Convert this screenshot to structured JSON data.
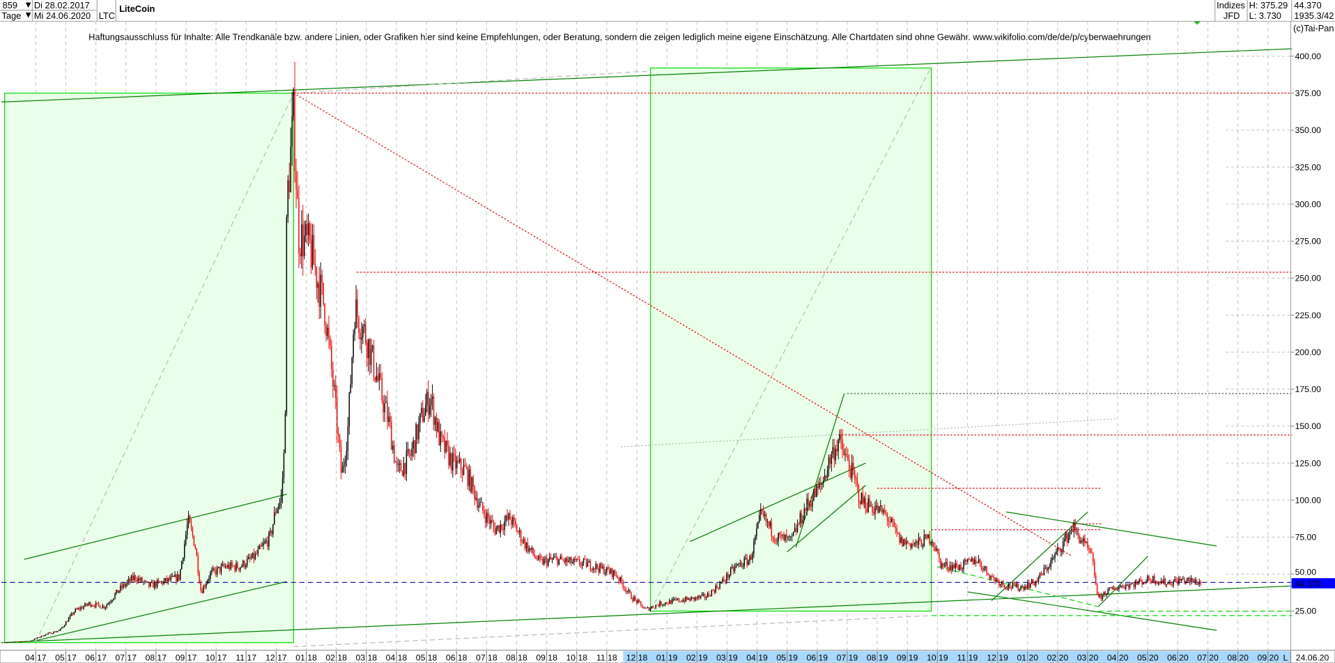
{
  "header": {
    "count_select": "859",
    "interval_select": "Tage",
    "date_from": "Di 28.02.2017",
    "date_to": "Mi 24.06.2020",
    "symbol": "LTC",
    "title": "LiteCoin",
    "exchange_top": "Indizes",
    "exchange_bottom": "JFD",
    "high": "H: 375.29",
    "low": "L: 3.730",
    "last": "44.370",
    "extra": "1935.3/42",
    "copyright": "(c)Tai-Pan"
  },
  "disclaimer": "Haftungsausschluss für Inhalte: Alle Trendkanäle bzw. andere Linien, oder Grafiken hier sind keine Empfehlungen, oder Beratung, sondern die zeigen lediglich meine eigene Einschätzung. Alle Chartdaten sind ohne Gewähr.  www.wikifolio.com/de/de/p/cyberwaehrungen",
  "colors": {
    "up": "#000000",
    "down": "#ff0000",
    "box": "#00dd00",
    "box_fill": "#eaffea",
    "trend": "#008000",
    "last_price_bg": "#0000ff",
    "axis_highlight": "#a8d8ff"
  },
  "chart_data": {
    "type": "candlestick",
    "ylim": [
      0,
      410
    ],
    "y_ticks": [
      "25.00",
      "50.00",
      "75.00",
      "100.00",
      "125.00",
      "150.00",
      "175.00",
      "200.00",
      "225.00",
      "250.00",
      "275.00",
      "300.00",
      "325.00",
      "350.00",
      "375.00",
      "400.00"
    ],
    "x_ticks": [
      "04 17",
      "05 17",
      "06 17",
      "07 17",
      "08 17",
      "09 17",
      "10 17",
      "11 17",
      "12 17",
      "01 18",
      "02 18",
      "03 18",
      "04 18",
      "05 18",
      "06 18",
      "07 18",
      "08 18",
      "09 18",
      "10 18",
      "11 18",
      "12 18",
      "01 19",
      "02 19",
      "03 19",
      "04 19",
      "05 19",
      "06 19",
      "07 19",
      "08 19",
      "09 19",
      "10 19",
      "11 19",
      "12 19",
      "01 20",
      "02 20",
      "03 20",
      "04 20",
      "05 20",
      "06 20",
      "07 20",
      "08 20",
      "09 20"
    ],
    "x_end_marker": "L",
    "x_end_date": "24.06.20",
    "last_price_label": "44.370",
    "grid": true,
    "prices": [
      [
        "2017-02-28",
        3.8
      ],
      [
        "2017-03-25",
        4.5
      ],
      [
        "2017-04-10",
        9
      ],
      [
        "2017-04-25",
        12
      ],
      [
        "2017-05-10",
        25
      ],
      [
        "2017-05-25",
        30
      ],
      [
        "2017-06-10",
        28
      ],
      [
        "2017-06-25",
        40
      ],
      [
        "2017-07-10",
        48
      ],
      [
        "2017-07-25",
        42
      ],
      [
        "2017-08-10",
        45
      ],
      [
        "2017-08-25",
        48
      ],
      [
        "2017-09-03",
        86
      ],
      [
        "2017-09-10",
        70
      ],
      [
        "2017-09-16",
        38
      ],
      [
        "2017-09-25",
        50
      ],
      [
        "2017-10-10",
        55
      ],
      [
        "2017-10-25",
        55
      ],
      [
        "2017-11-10",
        62
      ],
      [
        "2017-11-25",
        75
      ],
      [
        "2017-12-01",
        95
      ],
      [
        "2017-12-06",
        100
      ],
      [
        "2017-12-10",
        140
      ],
      [
        "2017-12-12",
        300
      ],
      [
        "2017-12-19",
        360
      ],
      [
        "2017-12-24",
        280
      ],
      [
        "2018-01-05",
        270
      ],
      [
        "2018-01-20",
        230
      ],
      [
        "2018-01-30",
        170
      ],
      [
        "2018-02-06",
        115
      ],
      [
        "2018-02-12",
        150
      ],
      [
        "2018-02-18",
        230
      ],
      [
        "2018-03-01",
        210
      ],
      [
        "2018-03-15",
        175
      ],
      [
        "2018-03-25",
        150
      ],
      [
        "2018-04-02",
        118
      ],
      [
        "2018-04-15",
        130
      ],
      [
        "2018-04-28",
        160
      ],
      [
        "2018-05-05",
        170
      ],
      [
        "2018-05-15",
        140
      ],
      [
        "2018-05-28",
        125
      ],
      [
        "2018-06-10",
        120
      ],
      [
        "2018-06-25",
        95
      ],
      [
        "2018-07-10",
        80
      ],
      [
        "2018-07-25",
        88
      ],
      [
        "2018-08-10",
        70
      ],
      [
        "2018-08-25",
        58
      ],
      [
        "2018-09-10",
        60
      ],
      [
        "2018-09-25",
        58
      ],
      [
        "2018-10-10",
        57
      ],
      [
        "2018-10-25",
        54
      ],
      [
        "2018-11-10",
        50
      ],
      [
        "2018-11-25",
        35
      ],
      [
        "2018-12-10",
        26
      ],
      [
        "2018-12-25",
        30
      ],
      [
        "2019-01-10",
        32
      ],
      [
        "2019-01-25",
        33
      ],
      [
        "2019-02-10",
        35
      ],
      [
        "2019-02-25",
        45
      ],
      [
        "2019-03-10",
        55
      ],
      [
        "2019-03-25",
        60
      ],
      [
        "2019-04-05",
        90
      ],
      [
        "2019-04-20",
        75
      ],
      [
        "2019-05-05",
        72
      ],
      [
        "2019-05-20",
        95
      ],
      [
        "2019-06-05",
        110
      ],
      [
        "2019-06-15",
        130
      ],
      [
        "2019-06-22",
        140
      ],
      [
        "2019-07-05",
        120
      ],
      [
        "2019-07-15",
        100
      ],
      [
        "2019-07-28",
        95
      ],
      [
        "2019-08-10",
        90
      ],
      [
        "2019-08-25",
        72
      ],
      [
        "2019-09-10",
        70
      ],
      [
        "2019-09-25",
        75
      ],
      [
        "2019-10-05",
        56
      ],
      [
        "2019-10-25",
        55
      ],
      [
        "2019-11-10",
        60
      ],
      [
        "2019-11-25",
        48
      ],
      [
        "2019-12-10",
        42
      ],
      [
        "2019-12-25",
        41
      ],
      [
        "2020-01-10",
        45
      ],
      [
        "2020-01-25",
        58
      ],
      [
        "2020-02-10",
        75
      ],
      [
        "2020-02-15",
        82
      ],
      [
        "2020-02-25",
        72
      ],
      [
        "2020-03-05",
        62
      ],
      [
        "2020-03-12",
        33
      ],
      [
        "2020-03-20",
        38
      ],
      [
        "2020-04-05",
        42
      ],
      [
        "2020-04-20",
        44
      ],
      [
        "2020-05-05",
        47
      ],
      [
        "2020-05-20",
        44
      ],
      [
        "2020-06-05",
        46
      ],
      [
        "2020-06-24",
        44.37
      ]
    ],
    "annotations": [
      {
        "kind": "box",
        "from": "2017-02-28",
        "to": "2017-12-19",
        "low": 3.7,
        "high": 375
      },
      {
        "kind": "box",
        "from": "2018-12-15",
        "to": "2019-09-25",
        "low": 25,
        "high": 392
      },
      {
        "kind": "line",
        "style": "solid",
        "color": "#008000",
        "p1": [
          "2017-02-25",
          369
        ],
        "p2": [
          "2020-09-25",
          405
        ]
      },
      {
        "kind": "line",
        "style": "solid",
        "color": "#008000",
        "p1": [
          "2017-02-25",
          3.7
        ],
        "p2": [
          "2020-09-25",
          42
        ]
      },
      {
        "kind": "line",
        "style": "solid",
        "color": "#008000",
        "p1": [
          "2017-03-20",
          60
        ],
        "p2": [
          "2017-12-12",
          104
        ]
      },
      {
        "kind": "line",
        "style": "solid",
        "color": "#008000",
        "p1": [
          "2017-04-01",
          5
        ],
        "p2": [
          "2017-12-12",
          45
        ]
      },
      {
        "kind": "line",
        "style": "dash",
        "color": "#bbbbbb",
        "p1": [
          "2017-04-01",
          4
        ],
        "p2": [
          "2017-12-19",
          375
        ]
      },
      {
        "kind": "line",
        "style": "dash",
        "color": "#bbbbbb",
        "p1": [
          "2018-12-15",
          25
        ],
        "p2": [
          "2019-09-25",
          393
        ]
      },
      {
        "kind": "line",
        "style": "dash",
        "color": "#bbbbbb",
        "p1": [
          "2017-12-19",
          375
        ],
        "p2": [
          "2018-12-15",
          390
        ]
      },
      {
        "kind": "line",
        "style": "dash",
        "color": "#bbbbbb",
        "p1": [
          "2017-12-19",
          1
        ],
        "p2": [
          "2019-09-25",
          22
        ]
      },
      {
        "kind": "line",
        "style": "dot",
        "color": "#ff0000",
        "p1": [
          "2017-12-19",
          375
        ],
        "p2": [
          "2020-09-25",
          375
        ]
      },
      {
        "kind": "line",
        "style": "dot",
        "color": "#ff0000",
        "p1": [
          "2018-02-20",
          254
        ],
        "p2": [
          "2020-09-25",
          254
        ]
      },
      {
        "kind": "line",
        "style": "dot",
        "color": "#ff0000",
        "p1": [
          "2017-12-19",
          375
        ],
        "p2": [
          "2020-02-15",
          62
        ]
      },
      {
        "kind": "line",
        "style": "dot",
        "color": "#555555",
        "p1": [
          "2019-07-01",
          172
        ],
        "p2": [
          "2020-09-25",
          172
        ]
      },
      {
        "kind": "line",
        "style": "dot",
        "color": "#ff0000",
        "p1": [
          "2019-06-22",
          144
        ],
        "p2": [
          "2020-09-25",
          144
        ]
      },
      {
        "kind": "line",
        "style": "dot",
        "color": "#ff0000",
        "p1": [
          "2019-08-01",
          108
        ],
        "p2": [
          "2020-03-15",
          108
        ]
      },
      {
        "kind": "line",
        "style": "dot",
        "color": "#ff0000",
        "p1": [
          "2019-09-25",
          80
        ],
        "p2": [
          "2020-03-15",
          80
        ]
      },
      {
        "kind": "line",
        "style": "dot",
        "color": "#ff0000",
        "p1": [
          "2020-02-15",
          84
        ],
        "p2": [
          "2020-03-15",
          84
        ]
      },
      {
        "kind": "line",
        "style": "dot",
        "color": "#bbbbbb",
        "p1": [
          "2018-11-15",
          136
        ],
        "p2": [
          "2020-04-01",
          155
        ]
      },
      {
        "kind": "line",
        "style": "solid",
        "color": "#008000",
        "p1": [
          "2019-01-25",
          72
        ],
        "p2": [
          "2019-07-20",
          125
        ]
      },
      {
        "kind": "line",
        "style": "solid",
        "color": "#008000",
        "p1": [
          "2019-05-01",
          65
        ],
        "p2": [
          "2019-07-20",
          110
        ]
      },
      {
        "kind": "line",
        "style": "solid",
        "color": "#008000",
        "p1": [
          "2019-05-10",
          68
        ],
        "p2": [
          "2019-06-28",
          172
        ]
      },
      {
        "kind": "line",
        "style": "solid",
        "color": "#008000",
        "p1": [
          "2019-11-25",
          32
        ],
        "p2": [
          "2020-03-01",
          92
        ]
      },
      {
        "kind": "line",
        "style": "solid",
        "color": "#008000",
        "p1": [
          "2020-03-12",
          28
        ],
        "p2": [
          "2020-05-01",
          62
        ]
      },
      {
        "kind": "line",
        "style": "solid",
        "color": "#008000",
        "p1": [
          "2019-12-10",
          92
        ],
        "p2": [
          "2020-07-10",
          69
        ]
      },
      {
        "kind": "line",
        "style": "solid",
        "color": "#008000",
        "p1": [
          "2019-11-01",
          38
        ],
        "p2": [
          "2020-07-10",
          12
        ]
      },
      {
        "kind": "line",
        "style": "dash",
        "color": "#00dd00",
        "p1": [
          "2020-03-12",
          25
        ],
        "p2": [
          "2020-09-25",
          25
        ]
      },
      {
        "kind": "line",
        "style": "dash",
        "color": "#00dd00",
        "p1": [
          "2019-09-25",
          22
        ],
        "p2": [
          "2020-09-25",
          22
        ]
      },
      {
        "kind": "line",
        "style": "dash",
        "color": "#00dd00",
        "p1": [
          "2019-10-01",
          55
        ],
        "p2": [
          "2020-03-12",
          28
        ]
      },
      {
        "kind": "line",
        "style": "dash",
        "color": "#0000aa",
        "p1": [
          "2017-02-25",
          44.37
        ],
        "p2": [
          "2020-09-25",
          44.37
        ]
      }
    ]
  }
}
